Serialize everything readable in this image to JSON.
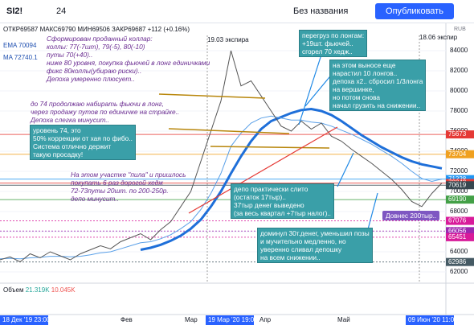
{
  "toolbar": {
    "symbol": "SI2!",
    "interval": "24",
    "layout_name": "Без названия",
    "publish": "Опубликовать"
  },
  "legend": {
    "ohlc": "ОТКР69587 МАКС69790 МИН69506 ЗАКР69687 +112 (+0.16%)",
    "ema_label": "EMA",
    "ema_value": "70094",
    "ma_label": "MA",
    "ma_value": "72740.1"
  },
  "volume": {
    "label": "Объем",
    "v1": "21.319K",
    "v2": "10.045K"
  },
  "currency": "RUB",
  "chart": {
    "ylim": [
      61000,
      86800
    ],
    "yticks": [
      62000,
      64000,
      66000,
      68000,
      70000,
      72000,
      74000,
      76000,
      78000,
      80000,
      82000,
      84000
    ],
    "price": [
      63200,
      63500,
      63000,
      63800,
      63400,
      64000,
      63600,
      63200,
      63800,
      64200,
      64600,
      64300,
      65000,
      65400,
      65800,
      65200,
      66200,
      67000,
      68500,
      70000,
      73000,
      76000,
      79000,
      84000,
      80500,
      81000,
      79500,
      78000,
      76500,
      76000,
      77000,
      76200,
      76800,
      75500,
      75000,
      74200,
      73500,
      72800,
      72000,
      71200,
      70200,
      69000,
      68500,
      69800,
      70843
    ],
    "ema": [
      63300,
      63350,
      63300,
      63400,
      63450,
      63550,
      63550,
      63500,
      63550,
      63700,
      63900,
      64000,
      64300,
      64600,
      64900,
      65000,
      65300,
      65700,
      66300,
      67000,
      68200,
      69800,
      71800,
      74500,
      75800,
      76800,
      77300,
      77500,
      77300,
      77100,
      77100,
      76900,
      76800,
      76500,
      76100,
      75700,
      75200,
      74700,
      74100,
      73500,
      72800,
      72000,
      71300,
      71000,
      71228
    ],
    "ma": [
      null,
      null,
      null,
      null,
      null,
      null,
      null,
      null,
      null,
      null,
      null,
      null,
      null,
      null,
      64200,
      64400,
      64700,
      65100,
      65600,
      66300,
      67200,
      68500,
      70000,
      71800,
      73500,
      75000,
      76200,
      77000,
      77400,
      77800,
      78100,
      78200,
      78000,
      77600,
      77000,
      76300,
      75600,
      75000,
      74400,
      73900,
      73400,
      73000,
      72700,
      72500,
      72300
    ],
    "levels": [
      {
        "value": 75673,
        "color": "#e53935"
      },
      {
        "value": 73704,
        "color": "#f0a020"
      },
      {
        "value": 71228,
        "color": "#2196f3"
      },
      {
        "value": 70843,
        "color": "#e53935"
      },
      {
        "value": 70619,
        "color": "#37474f"
      },
      {
        "value": 69190,
        "color": "#43a047"
      },
      {
        "value": 67076,
        "color": "#d81b9a"
      },
      {
        "value": 66056,
        "color": "#9c27b0"
      },
      {
        "value": 65451,
        "color": "#d81b9a"
      },
      {
        "value": 62986,
        "color": "#455a64"
      }
    ]
  },
  "time_labels": [
    "18 Дек '19 23:00",
    "Фев",
    "Мар",
    "19 Мар '20 19:00",
    "Апр",
    "Май",
    "09 Июн '20 11:00"
  ],
  "expiries": [
    "19.03 экспира",
    "18.06 экспир"
  ],
  "annotations": [
    {
      "lines": [
        "Сформирован проданный коллар:",
        "коллы: 77(-7шт), 79(-5), 80(-10)",
        "путы 70(+40)..",
        "ниже 80 уровня, покупка фьючей в лонг единичками",
        "фикс 80коллы(убираю риски)..",
        "Депоха умеренно плюсует.."
      ]
    },
    {
      "lines": [
        "до 74 продолжаю набирать фьючи в лонг,",
        "через продажу путов по единичке на страйке..",
        "Депоха слегка минусит.."
      ]
    },
    {
      "lines": [
        "уровень 74, это",
        "50% коррекции от хая по фибо..",
        "Система отлично держит",
        "такую просадку!"
      ]
    },
    {
      "lines": [
        "На этом участке \"пила\" и пришлось",
        "покупать 6 раз дорогой хедж",
        "72-73путы 20шт. по 200-250р.",
        "депо минусит.."
      ]
    },
    {
      "lines": [
        "перегруз по лонгам:",
        "+19шт. фьючей..",
        "сгорел 70 хедж.."
      ]
    },
    {
      "lines": [
        "на этом выносе еще",
        "нарастил 10 лонгов..",
        "депоха х2.. сбросил 1/3лонга",
        "на вершинке,",
        "но потом снова",
        "начал грузить на снижении.."
      ]
    },
    {
      "lines": [
        "депо практически слито",
        "(остаток 17тыр)..",
        "37тыр денег выведено",
        "(за весь квартал +7тыр налог).."
      ]
    },
    {
      "lines": [
        "доминул 30т.денег, уменьшил позы",
        "и мучительно медленно, но",
        "уверенно сливал депошку",
        "на всем снижении.."
      ]
    },
    {
      "lines": [
        "Довнес 200тыр.."
      ]
    }
  ]
}
